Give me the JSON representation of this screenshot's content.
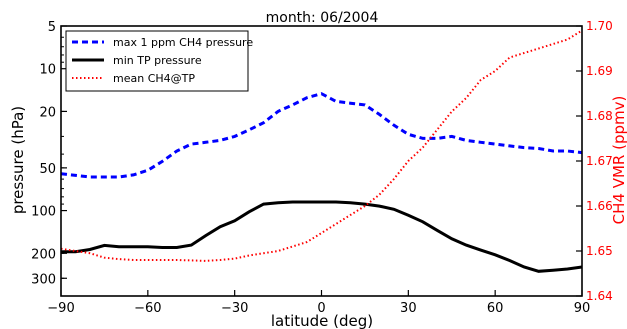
{
  "chart_data": {
    "type": "line",
    "title": "month: 06/2004",
    "xlabel": "latitude (deg)",
    "ylabel_left": "pressure (hPa)",
    "ylabel_right": "CH4 VMR (ppmv)",
    "xlim": [
      -90,
      90
    ],
    "ylim_left": [
      400,
      5
    ],
    "ylim_left_scale": "log",
    "ylim_right": [
      1.64,
      1.7
    ],
    "xticks": [
      -90,
      -60,
      -30,
      0,
      30,
      60,
      90
    ],
    "xtick_labels": [
      "−90",
      "−60",
      "−30",
      "0",
      "30",
      "60",
      "90"
    ],
    "yticks_left": [
      5,
      10,
      20,
      50,
      100,
      200,
      300
    ],
    "ytick_labels_left": [
      "5",
      "10",
      "20",
      "50",
      "100",
      "200",
      "300"
    ],
    "yticks_right": [
      1.64,
      1.65,
      1.66,
      1.67,
      1.68,
      1.69,
      1.7
    ],
    "ytick_labels_right": [
      "1.64",
      "1.65",
      "1.66",
      "1.67",
      "1.68",
      "1.69",
      "1.70"
    ],
    "grid": false,
    "legend_position": "top-left",
    "colors": {
      "blue": "#0000ff",
      "black": "#000000",
      "red": "#ff0000"
    },
    "series": [
      {
        "name": "max 1 ppm CH4 pressure",
        "axis": "left",
        "style": "dashed",
        "color": "#0000ff",
        "x": [
          -90,
          -80,
          -70,
          -65,
          -60,
          -55,
          -50,
          -45,
          -40,
          -35,
          -30,
          -25,
          -20,
          -15,
          -10,
          -5,
          0,
          5,
          10,
          15,
          20,
          25,
          30,
          35,
          40,
          45,
          50,
          55,
          60,
          65,
          70,
          75,
          80,
          85,
          90
        ],
        "y": [
          55,
          58,
          58,
          56,
          52,
          45,
          38,
          34,
          33,
          32,
          30,
          27,
          24,
          20,
          18,
          16,
          15,
          17,
          17.5,
          18,
          21,
          25,
          29,
          31,
          31,
          30,
          32,
          33,
          34,
          35,
          36,
          36.5,
          38,
          38,
          39
        ]
      },
      {
        "name": "min TP pressure",
        "axis": "left",
        "style": "solid",
        "color": "#000000",
        "x": [
          -90,
          -85,
          -80,
          -75,
          -70,
          -65,
          -60,
          -55,
          -50,
          -45,
          -40,
          -35,
          -30,
          -25,
          -20,
          -15,
          -10,
          -5,
          0,
          5,
          10,
          15,
          20,
          25,
          30,
          35,
          40,
          45,
          50,
          55,
          60,
          65,
          70,
          75,
          80,
          85,
          90
        ],
        "y": [
          195,
          195,
          188,
          176,
          180,
          180,
          180,
          182,
          182,
          175,
          150,
          130,
          118,
          102,
          90,
          88,
          87,
          87,
          87,
          87,
          88,
          90,
          93,
          98,
          108,
          120,
          138,
          158,
          175,
          190,
          205,
          225,
          250,
          268,
          263,
          258,
          250
        ]
      },
      {
        "name": "mean CH4@TP",
        "axis": "right",
        "style": "dotted",
        "color": "#ff0000",
        "x": [
          -90,
          -85,
          -80,
          -75,
          -70,
          -65,
          -60,
          -55,
          -50,
          -45,
          -40,
          -35,
          -30,
          -25,
          -20,
          -15,
          -10,
          -5,
          0,
          5,
          10,
          15,
          20,
          25,
          30,
          35,
          40,
          45,
          50,
          55,
          60,
          65,
          70,
          75,
          80,
          85,
          90
        ],
        "y": [
          1.6505,
          1.65,
          1.6495,
          1.6485,
          1.6482,
          1.648,
          1.648,
          1.648,
          1.648,
          1.6479,
          1.6478,
          1.648,
          1.6483,
          1.649,
          1.6495,
          1.65,
          1.651,
          1.652,
          1.654,
          1.656,
          1.658,
          1.66,
          1.6625,
          1.666,
          1.67,
          1.673,
          1.677,
          1.681,
          1.684,
          1.688,
          1.69,
          1.693,
          1.694,
          1.695,
          1.696,
          1.697,
          1.699
        ]
      }
    ]
  }
}
